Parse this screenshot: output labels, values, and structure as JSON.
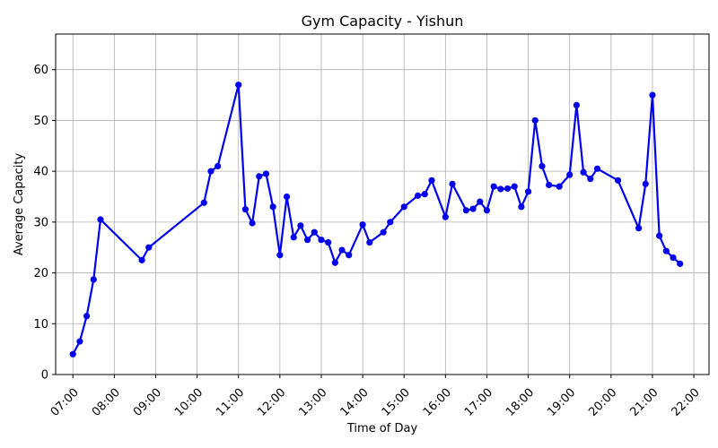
{
  "chart_data": {
    "type": "line",
    "title": "Gym Capacity - Yishun",
    "xlabel": "Time of Day",
    "ylabel": "Average Capacity",
    "x_ticks": [
      "07:00",
      "08:00",
      "09:00",
      "10:00",
      "11:00",
      "12:00",
      "13:00",
      "14:00",
      "15:00",
      "16:00",
      "17:00",
      "18:00",
      "19:00",
      "20:00",
      "21:00",
      "22:00"
    ],
    "y_ticks": [
      0,
      10,
      20,
      30,
      40,
      50,
      60
    ],
    "xlim": [
      "06:35",
      "22:22"
    ],
    "ylim": [
      0,
      67
    ],
    "grid": true,
    "line_color": "#0000ee",
    "marker_color": "#0000ee",
    "series": [
      {
        "x": [
          "07:00",
          "07:10",
          "07:20",
          "07:30",
          "07:40",
          "08:40",
          "08:50",
          "10:10",
          "10:20",
          "10:30",
          "11:00",
          "11:10",
          "11:20",
          "11:30",
          "11:40",
          "11:50",
          "12:00",
          "12:10",
          "12:20",
          "12:30",
          "12:40",
          "12:50",
          "13:00",
          "13:10",
          "13:20",
          "13:30",
          "13:40",
          "14:00",
          "14:10",
          "14:30",
          "14:40",
          "15:00",
          "15:20",
          "15:30",
          "15:40",
          "16:00",
          "16:10",
          "16:30",
          "16:40",
          "16:50",
          "17:00",
          "17:10",
          "17:20",
          "17:30",
          "17:40",
          "17:50",
          "18:00",
          "18:10",
          "18:20",
          "18:30",
          "18:45",
          "19:00",
          "19:10",
          "19:20",
          "19:30",
          "19:40",
          "20:10",
          "20:40",
          "20:50",
          "21:00",
          "21:10",
          "21:20",
          "21:30",
          "21:40"
        ],
        "values": [
          4.0,
          6.5,
          11.5,
          18.7,
          30.5,
          22.5,
          25.0,
          33.8,
          40.0,
          41.0,
          57.0,
          32.5,
          29.8,
          39.0,
          39.5,
          33.0,
          23.5,
          35.0,
          27.0,
          29.3,
          26.5,
          28.0,
          26.5,
          26.0,
          22.0,
          24.5,
          23.5,
          29.5,
          26.0,
          28.0,
          30.0,
          33.0,
          35.2,
          35.5,
          38.2,
          31.0,
          37.5,
          32.3,
          32.6,
          34.0,
          32.3,
          37.0,
          36.5,
          36.6,
          37.0,
          33.0,
          36.0,
          50.0,
          41.0,
          37.3,
          37.0,
          39.3,
          53.0,
          39.8,
          38.5,
          40.5,
          38.2,
          28.8,
          37.5,
          55.0,
          27.3,
          24.3,
          23.0,
          21.8
        ]
      }
    ]
  }
}
